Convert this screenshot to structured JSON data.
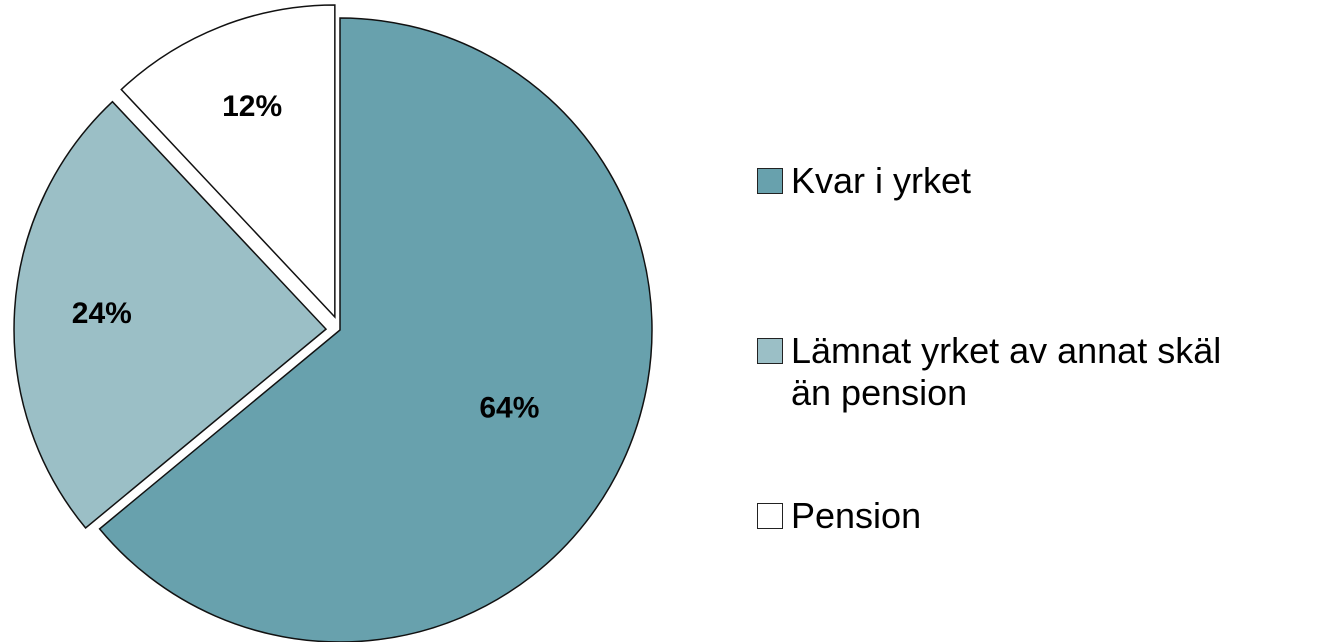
{
  "chart_data": {
    "type": "pie",
    "categories": [
      "Kvar i yrket",
      "Lämnat yrket av annat skäl än pension",
      "Pension"
    ],
    "values": [
      64,
      24,
      12
    ],
    "value_labels": [
      "64%",
      "24%",
      "12%"
    ],
    "colors": [
      "#68a1ad",
      "#9bbfc6",
      "#ffffff"
    ],
    "legend": "right"
  }
}
